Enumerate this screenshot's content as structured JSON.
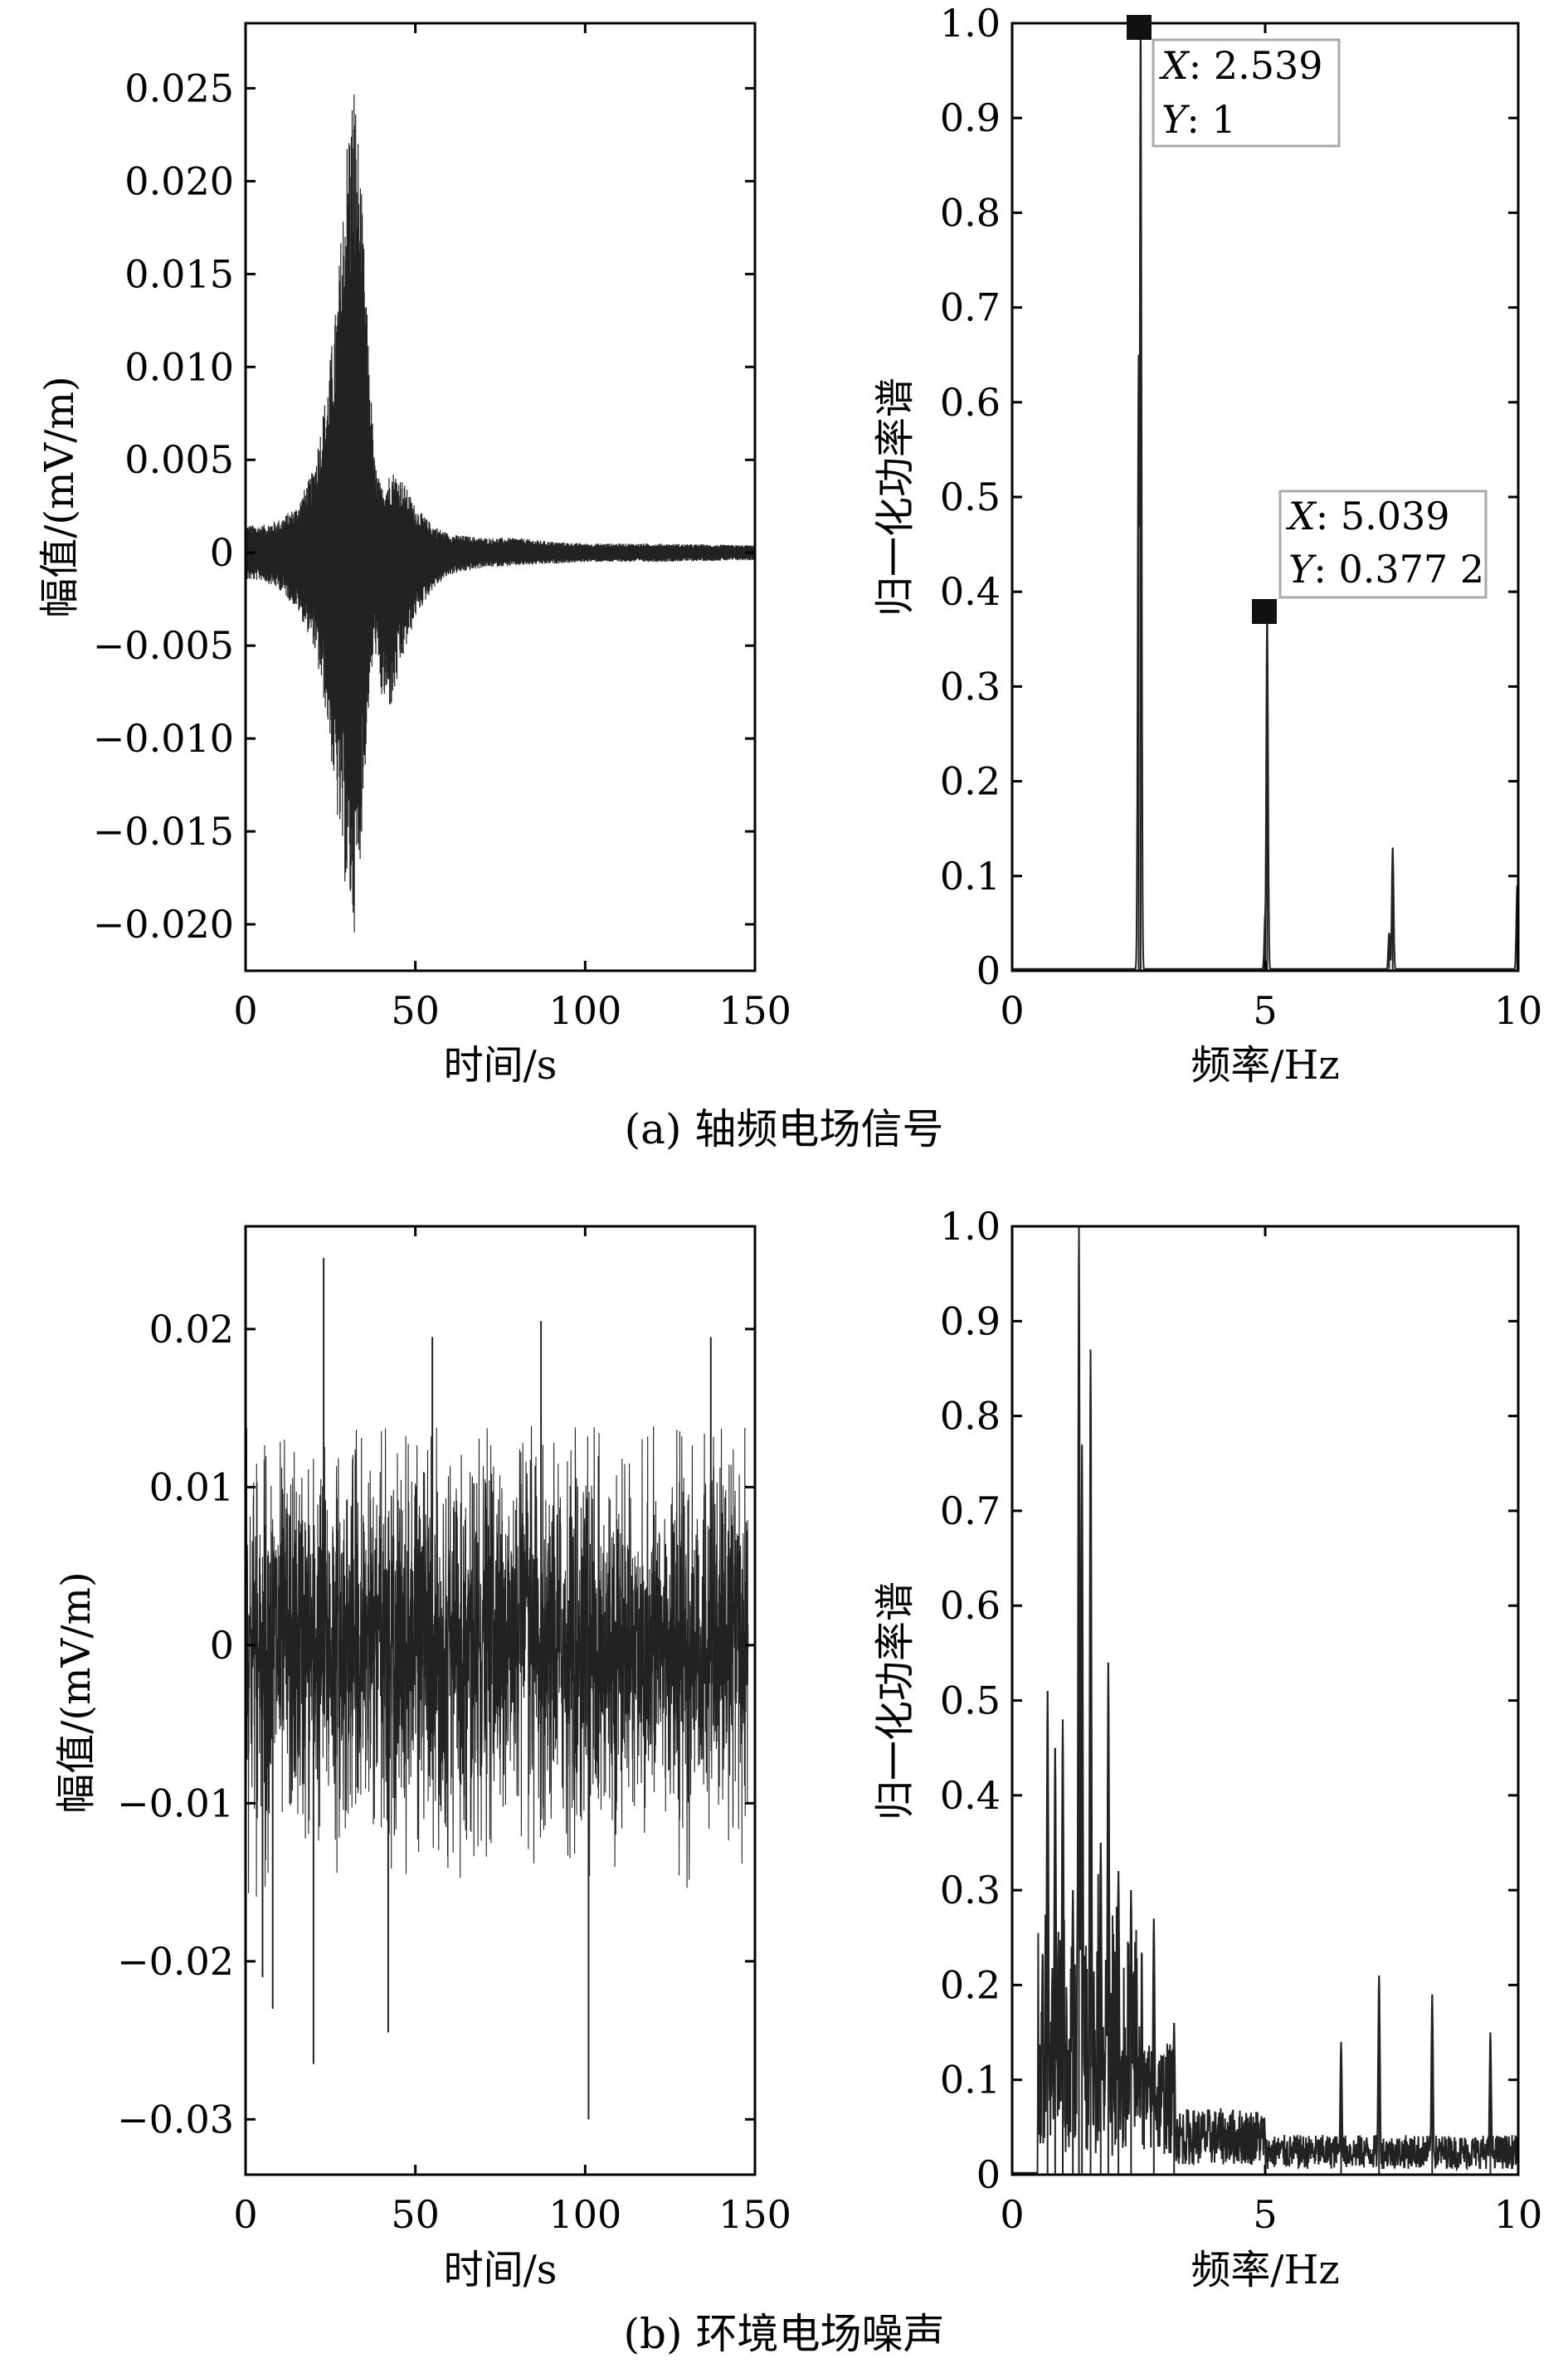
{
  "chart_data": [
    {
      "type": "line",
      "panel": "a-left",
      "xlabel": "时间/s",
      "ylabel": "幅值/(mV/m)",
      "xlim": [
        0,
        150
      ],
      "ylim": [
        -0.0225,
        0.0285
      ],
      "xticks": [
        "0",
        "50",
        "100",
        "150"
      ],
      "yticks": [
        "0.025",
        "0.020",
        "0.015",
        "0.010",
        "0.005",
        "0",
        "−0.005",
        "−0.010",
        "−0.015",
        "−0.020"
      ],
      "ytick_values": [
        0.025,
        0.02,
        0.015,
        0.01,
        0.005,
        0,
        -0.005,
        -0.01,
        -0.015,
        -0.02
      ],
      "grid": false,
      "series": [
        {
          "envelope": {
            "x": [
              0,
              5,
              10,
              15,
              20,
              24,
              27,
              30,
              32,
              34,
              36,
              38,
              40,
              43,
              46,
              50,
              55,
              60,
              70,
              80,
              90,
              100,
              120,
              150
            ],
            "upper": [
              0.0015,
              0.0015,
              0.0018,
              0.0025,
              0.0045,
              0.009,
              0.014,
              0.023,
              0.026,
              0.02,
              0.012,
              0.005,
              0.0035,
              0.0045,
              0.004,
              0.0025,
              0.0015,
              0.001,
              0.0008,
              0.0008,
              0.0006,
              0.0005,
              0.0005,
              0.0004
            ],
            "lower": [
              -0.0015,
              -0.0015,
              -0.002,
              -0.003,
              -0.005,
              -0.009,
              -0.0145,
              -0.019,
              -0.0205,
              -0.016,
              -0.009,
              -0.005,
              -0.008,
              -0.0085,
              -0.006,
              -0.0035,
              -0.002,
              -0.0012,
              -0.0008,
              -0.0007,
              -0.0006,
              -0.0005,
              -0.0005,
              -0.0004
            ]
          }
        }
      ]
    },
    {
      "type": "line",
      "panel": "a-right",
      "xlabel": "频率/Hz",
      "ylabel": "归一化功率谱",
      "xlim": [
        0,
        10
      ],
      "ylim": [
        0,
        1.0
      ],
      "xticks": [
        "0",
        "5",
        "10"
      ],
      "yticks": [
        "1.0",
        "0.9",
        "0.8",
        "0.7",
        "0.6",
        "0.5",
        "0.4",
        "0.3",
        "0.2",
        "0.1",
        "0"
      ],
      "ytick_values": [
        1.0,
        0.9,
        0.8,
        0.7,
        0.6,
        0.5,
        0.4,
        0.3,
        0.2,
        0.1,
        0
      ],
      "grid": false,
      "series": [
        {
          "peaks": [
            {
              "x": 2.539,
              "y": 1.0
            },
            {
              "x": 2.5,
              "y": 0.65
            },
            {
              "x": 5.039,
              "y": 0.3772
            },
            {
              "x": 5.0,
              "y": 0.06
            },
            {
              "x": 7.52,
              "y": 0.13
            },
            {
              "x": 7.45,
              "y": 0.04
            },
            {
              "x": 9.98,
              "y": 0.09
            }
          ]
        }
      ],
      "annotations": [
        {
          "x": 2.539,
          "y": 1.0,
          "x_key": "X",
          "x_text": ": 2.539",
          "y_key": "Y",
          "y_text": ": 1"
        },
        {
          "x": 5.039,
          "y": 0.3772,
          "x_key": "X",
          "x_text": ": 5.039",
          "y_key": "Y",
          "y_text": ": 0.377 2"
        }
      ]
    },
    {
      "type": "line",
      "panel": "b-left",
      "xlabel": "时间/s",
      "ylabel": "幅值/(mV/m)",
      "xlim": [
        0,
        150
      ],
      "ylim": [
        -0.0335,
        0.0265
      ],
      "xticks": [
        "0",
        "50",
        "100",
        "150"
      ],
      "yticks": [
        "0.02",
        "0.01",
        "0",
        "−0.01",
        "−0.02",
        "−0.03"
      ],
      "ytick_values": [
        0.02,
        0.01,
        0,
        -0.01,
        -0.02,
        -0.03
      ],
      "grid": false,
      "series": [
        {
          "noise_band": {
            "x": [
              0,
              148
            ],
            "typical_upper": 0.012,
            "typical_lower": -0.013
          },
          "spikes": [
            {
              "x": 23,
              "y": 0.0245
            },
            {
              "x": 20,
              "y": -0.0265
            },
            {
              "x": 8,
              "y": -0.023
            },
            {
              "x": 42,
              "y": -0.0245
            },
            {
              "x": 101,
              "y": -0.03
            },
            {
              "x": 87,
              "y": 0.0205
            },
            {
              "x": 55,
              "y": 0.0195
            },
            {
              "x": 137,
              "y": 0.0195
            },
            {
              "x": 5,
              "y": -0.021
            }
          ]
        }
      ]
    },
    {
      "type": "line",
      "panel": "b-right",
      "xlabel": "频率/Hz",
      "ylabel": "归一化功率谱",
      "xlim": [
        0,
        10
      ],
      "ylim": [
        0,
        1.0
      ],
      "xticks": [
        "0",
        "5",
        "10"
      ],
      "yticks": [
        "1.0",
        "0.9",
        "0.8",
        "0.7",
        "0.6",
        "0.5",
        "0.4",
        "0.3",
        "0.2",
        "0.1",
        "0"
      ],
      "ytick_values": [
        1.0,
        0.9,
        0.8,
        0.7,
        0.6,
        0.5,
        0.4,
        0.3,
        0.2,
        0.1,
        0
      ],
      "grid": false,
      "series": [
        {
          "peaks": [
            {
              "x": 0.7,
              "y": 0.51
            },
            {
              "x": 0.85,
              "y": 0.45
            },
            {
              "x": 1.0,
              "y": 0.48
            },
            {
              "x": 1.2,
              "y": 0.3
            },
            {
              "x": 1.32,
              "y": 1.0
            },
            {
              "x": 1.38,
              "y": 0.77
            },
            {
              "x": 1.55,
              "y": 0.87
            },
            {
              "x": 1.75,
              "y": 0.35
            },
            {
              "x": 1.9,
              "y": 0.54
            },
            {
              "x": 2.1,
              "y": 0.32
            },
            {
              "x": 2.35,
              "y": 0.3
            },
            {
              "x": 2.8,
              "y": 0.27
            },
            {
              "x": 3.2,
              "y": 0.16
            },
            {
              "x": 6.5,
              "y": 0.14
            },
            {
              "x": 7.25,
              "y": 0.21
            },
            {
              "x": 8.3,
              "y": 0.19
            },
            {
              "x": 9.45,
              "y": 0.15
            }
          ],
          "noise_floor": {
            "from": 0.5,
            "level_low": 0.05,
            "level_high": 0.02
          }
        }
      ]
    }
  ],
  "captions": {
    "a": "(a) 轴频电场信号",
    "b": "(b) 环境电场噪声"
  }
}
